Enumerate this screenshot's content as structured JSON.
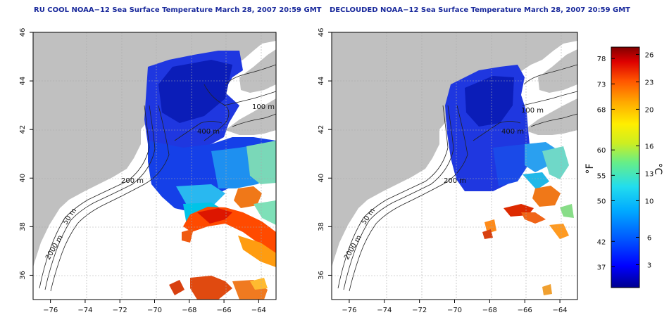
{
  "panels": [
    {
      "title": "RU COOL NOAA−12 Sea Surface Temperature March 28, 2007 20:59 GMT",
      "isobath_labels": [
        "400 m",
        "100 m",
        "200 m",
        "50 m",
        "2000 m"
      ]
    },
    {
      "title": "DECLOUDED NOAA−12 Sea Surface Temperature March 28, 2007 20:59 GMT",
      "isobath_labels": [
        "100 m",
        "400 m",
        "200 m",
        "50 m",
        "2000 m"
      ]
    }
  ],
  "axes": {
    "lon_ticks": [
      "−76",
      "−74",
      "−72",
      "−70",
      "−68",
      "−66",
      "−64"
    ],
    "lat_ticks": [
      "36",
      "38",
      "40",
      "42",
      "44",
      "46"
    ],
    "lon_range": [
      -77,
      -63
    ],
    "lat_range": [
      35,
      46
    ]
  },
  "colorbar": {
    "left_unit": "°F",
    "right_unit": "°C",
    "fahrenheit_ticks": [
      {
        "label": "78",
        "value": 78
      },
      {
        "label": "73",
        "value": 73
      },
      {
        "label": "68",
        "value": 68
      },
      {
        "label": "60",
        "value": 60
      },
      {
        "label": "55",
        "value": 55
      },
      {
        "label": "50",
        "value": 50
      },
      {
        "label": "42",
        "value": 42
      },
      {
        "label": "37",
        "value": 37
      }
    ],
    "celsius_ticks": [
      {
        "label": "26",
        "value": 26
      },
      {
        "label": "23",
        "value": 23
      },
      {
        "label": "20",
        "value": 20
      },
      {
        "label": "16",
        "value": 16
      },
      {
        "label": "13",
        "value": 13
      },
      {
        "label": "10",
        "value": 10
      },
      {
        "label": "6",
        "value": 6
      },
      {
        "label": "3",
        "value": 3
      }
    ],
    "celsius_range": [
      0.5,
      26.8
    ],
    "colors": [
      "#00008f",
      "#0000ff",
      "#0055ff",
      "#00aaff",
      "#22ddee",
      "#66ee88",
      "#ccee22",
      "#ffee00",
      "#ffaa00",
      "#ff5500",
      "#dd0000",
      "#800000"
    ]
  },
  "colors": {
    "land": "#c0c0c0",
    "title": "#1a2a9c",
    "grid": "#aaaaaa"
  }
}
